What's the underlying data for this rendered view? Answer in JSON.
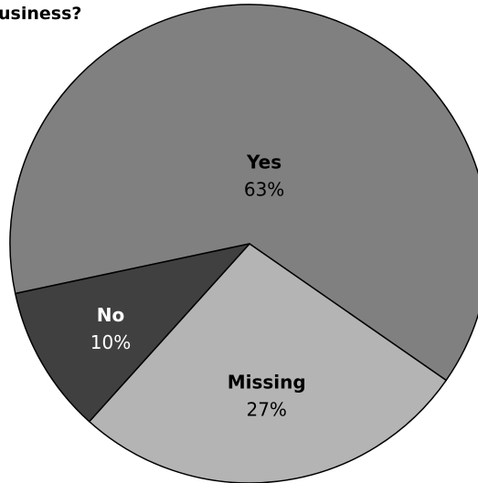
{
  "chart_data": {
    "type": "pie",
    "title": "usiness?",
    "categories": [
      "Yes",
      "Missing",
      "No"
    ],
    "values": [
      63,
      27,
      10
    ],
    "labels": [
      "63%",
      "27%",
      "10%"
    ],
    "colors": [
      "#808080",
      "#b4b4b4",
      "#404040"
    ],
    "label_colors": [
      "#000000",
      "#000000",
      "#ffffff"
    ],
    "start_angle_deg": 192,
    "direction": "clockwise"
  }
}
